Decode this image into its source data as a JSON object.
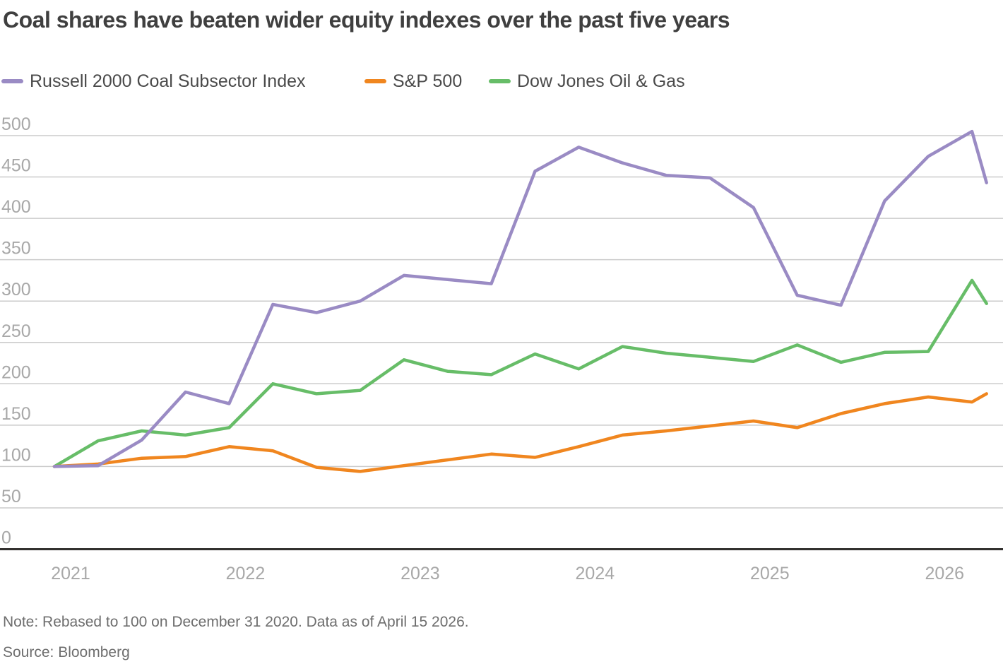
{
  "chart_data": {
    "type": "line",
    "title": "Coal shares have beaten wider equity indexes over the past five years",
    "x_unit": "months since December 31 2020",
    "x": [
      0,
      3,
      6,
      9,
      12,
      15,
      18,
      21,
      24,
      27,
      30,
      33,
      36,
      39,
      42,
      45,
      48,
      51,
      54,
      57,
      60,
      63,
      64
    ],
    "series": [
      {
        "name": "Russell 2000 Coal Subsector Index",
        "color": "#9a8bc4",
        "values": [
          100,
          101,
          132,
          190,
          176,
          296,
          286,
          300,
          331,
          326,
          321,
          457,
          486,
          467,
          452,
          449,
          413,
          307,
          295,
          421,
          475,
          505,
          443
        ]
      },
      {
        "name": "S&P 500",
        "color": "#f0861f",
        "values": [
          100,
          103,
          110,
          112,
          124,
          119,
          99,
          94,
          101,
          108,
          115,
          111,
          124,
          138,
          143,
          149,
          155,
          147,
          164,
          176,
          184,
          178,
          188
        ]
      },
      {
        "name": "Dow Jones Oil & Gas",
        "color": "#67bd68",
        "values": [
          100,
          131,
          143,
          138,
          147,
          200,
          188,
          192,
          229,
          215,
          211,
          236,
          218,
          245,
          237,
          232,
          227,
          247,
          226,
          238,
          239,
          325,
          297
        ]
      }
    ],
    "y_ticks": [
      500,
      450,
      400,
      350,
      300,
      250,
      200,
      150,
      100,
      50,
      0
    ],
    "x_tick_years": [
      "2021",
      "2022",
      "2023",
      "2024",
      "2025",
      "2026"
    ],
    "ylim": [
      0,
      500
    ],
    "grid": "horizontal",
    "legend_position": "top",
    "axis_color": "#32302e",
    "gridline_color": "#cbcbcb"
  },
  "footer": {
    "note": "Note: Rebased to 100 on December 31 2020. Data as of April 15 2026.",
    "source": "Source: Bloomberg"
  }
}
